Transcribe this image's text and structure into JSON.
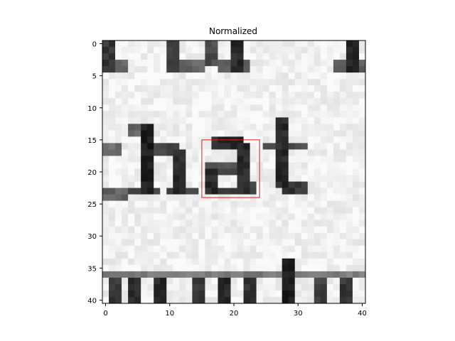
{
  "chart_data": {
    "type": "heatmap",
    "title": "Normalized",
    "xlabel": "",
    "ylabel": "",
    "colormap": "gray",
    "xlim": [
      -0.5,
      40.5
    ],
    "ylim": [
      40.5,
      -0.5
    ],
    "xticks": [
      0,
      10,
      20,
      30,
      40
    ],
    "yticks": [
      0,
      5,
      10,
      15,
      20,
      25,
      30,
      35,
      40
    ],
    "image_shape": [
      41,
      41
    ],
    "image_content": "scanned text fragment: partial glyphs at top, the letters 'hat' in the middle rows, partial glyphs at bottom",
    "box": {
      "x0": 15,
      "y0": 15,
      "x1": 24,
      "y1": 24,
      "color": "#e0191b"
    }
  }
}
